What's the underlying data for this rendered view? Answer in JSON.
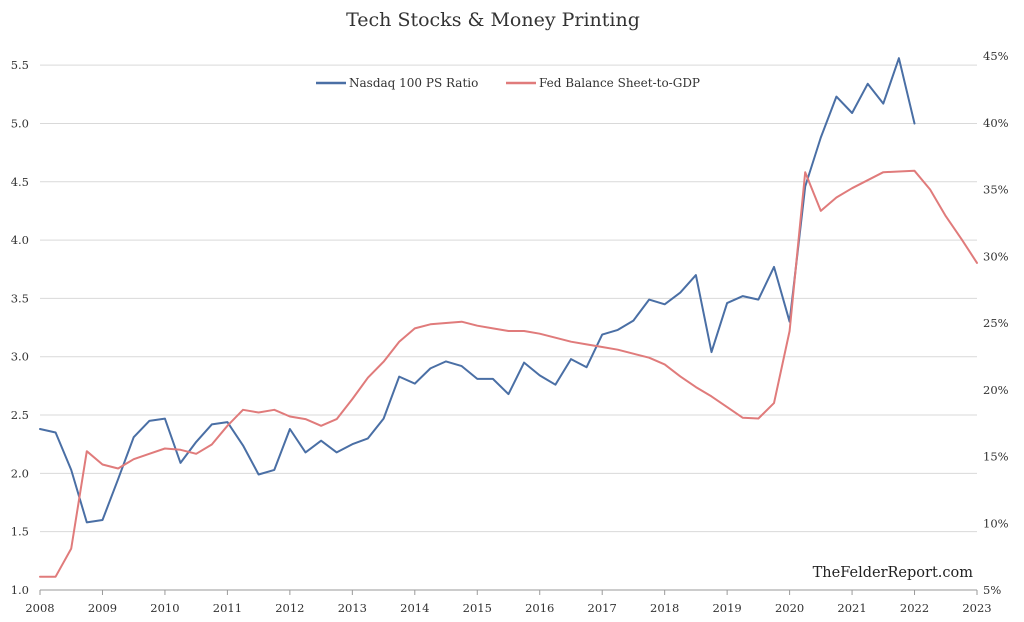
{
  "chart_data": {
    "type": "line",
    "title": "Tech Stocks & Money Printing",
    "watermark": "TheFelderReport.com",
    "xlabel": "",
    "ylabel": "",
    "x_ticks": [
      "2008",
      "2009",
      "2010",
      "2011",
      "2012",
      "2013",
      "2014",
      "2015",
      "2016",
      "2017",
      "2018",
      "2019",
      "2020",
      "2021",
      "2022",
      "2023"
    ],
    "xlim": [
      2008,
      2023
    ],
    "y_left": {
      "ticks": [
        "1.0",
        "1.5",
        "2.0",
        "2.5",
        "3.0",
        "3.5",
        "4.0",
        "4.5",
        "5.0",
        "5.5"
      ],
      "lim": [
        1.0,
        5.75
      ]
    },
    "y_right": {
      "ticks": [
        "5%",
        "10%",
        "15%",
        "20%",
        "25%",
        "30%",
        "35%",
        "40%",
        "45%"
      ],
      "lim": [
        5,
        46.5
      ]
    },
    "grid": true,
    "legend_position": "top-center",
    "series": [
      {
        "name": "Nasdaq 100 PS Ratio",
        "color": "#4a6fa5",
        "axis": "left",
        "x": [
          2008.0,
          2008.25,
          2008.5,
          2008.75,
          2009.0,
          2009.25,
          2009.5,
          2009.75,
          2010.0,
          2010.25,
          2010.5,
          2010.75,
          2011.0,
          2011.25,
          2011.5,
          2011.75,
          2012.0,
          2012.25,
          2012.5,
          2012.75,
          2013.0,
          2013.25,
          2013.5,
          2013.75,
          2014.0,
          2014.25,
          2014.5,
          2014.75,
          2015.0,
          2015.25,
          2015.5,
          2015.75,
          2016.0,
          2016.25,
          2016.5,
          2016.75,
          2017.0,
          2017.25,
          2017.5,
          2017.75,
          2018.0,
          2018.25,
          2018.5,
          2018.75,
          2019.0,
          2019.25,
          2019.5,
          2019.75,
          2020.0,
          2020.25,
          2020.5,
          2020.75,
          2021.0,
          2021.25,
          2021.5,
          2021.75,
          2022.0
        ],
        "values": [
          2.38,
          2.35,
          2.03,
          1.58,
          1.6,
          1.95,
          2.31,
          2.45,
          2.47,
          2.09,
          2.27,
          2.42,
          2.44,
          2.24,
          1.99,
          2.03,
          2.38,
          2.18,
          2.28,
          2.18,
          2.25,
          2.3,
          2.47,
          2.83,
          2.77,
          2.9,
          2.96,
          2.92,
          2.81,
          2.81,
          2.68,
          2.95,
          2.84,
          2.76,
          2.98,
          2.91,
          3.19,
          3.23,
          3.31,
          3.49,
          3.45,
          3.55,
          3.7,
          3.04,
          3.46,
          3.52,
          3.49,
          3.77,
          3.3,
          4.46,
          4.88,
          5.23,
          5.09,
          5.34,
          5.17,
          5.56,
          5.0
        ]
      },
      {
        "name": "Fed Balance Sheet-to-GDP",
        "color": "#e07b7b",
        "axis": "right",
        "x": [
          2008.0,
          2008.25,
          2008.5,
          2008.75,
          2009.0,
          2009.25,
          2009.5,
          2009.75,
          2010.0,
          2010.25,
          2010.5,
          2010.75,
          2011.0,
          2011.25,
          2011.5,
          2011.75,
          2012.0,
          2012.25,
          2012.5,
          2012.75,
          2013.0,
          2013.25,
          2013.5,
          2013.75,
          2014.0,
          2014.25,
          2014.5,
          2014.75,
          2015.0,
          2015.25,
          2015.5,
          2015.75,
          2016.0,
          2016.25,
          2016.5,
          2016.75,
          2017.0,
          2017.25,
          2017.5,
          2017.75,
          2018.0,
          2018.25,
          2018.5,
          2018.75,
          2019.0,
          2019.25,
          2019.5,
          2019.75,
          2020.0,
          2020.25,
          2020.5,
          2020.75,
          2021.0,
          2021.25,
          2021.5,
          2021.75,
          2022.0,
          2022.25,
          2022.5,
          2022.75,
          2023.0
        ],
        "values": [
          6.0,
          6.0,
          8.1,
          15.4,
          14.4,
          14.1,
          14.8,
          15.2,
          15.6,
          15.5,
          15.2,
          15.9,
          17.3,
          18.5,
          18.3,
          18.5,
          18.0,
          17.8,
          17.3,
          17.8,
          19.3,
          20.9,
          22.1,
          23.6,
          24.6,
          24.9,
          25.0,
          25.1,
          24.8,
          24.6,
          24.4,
          24.4,
          24.2,
          23.9,
          23.6,
          23.4,
          23.2,
          23.0,
          22.7,
          22.4,
          21.9,
          21.0,
          20.2,
          19.5,
          18.7,
          17.9,
          17.85,
          19.0,
          24.4,
          36.3,
          33.4,
          34.4,
          35.1,
          35.7,
          36.3,
          36.35,
          36.4,
          35.0,
          33.0,
          31.3,
          29.5
        ]
      }
    ]
  }
}
